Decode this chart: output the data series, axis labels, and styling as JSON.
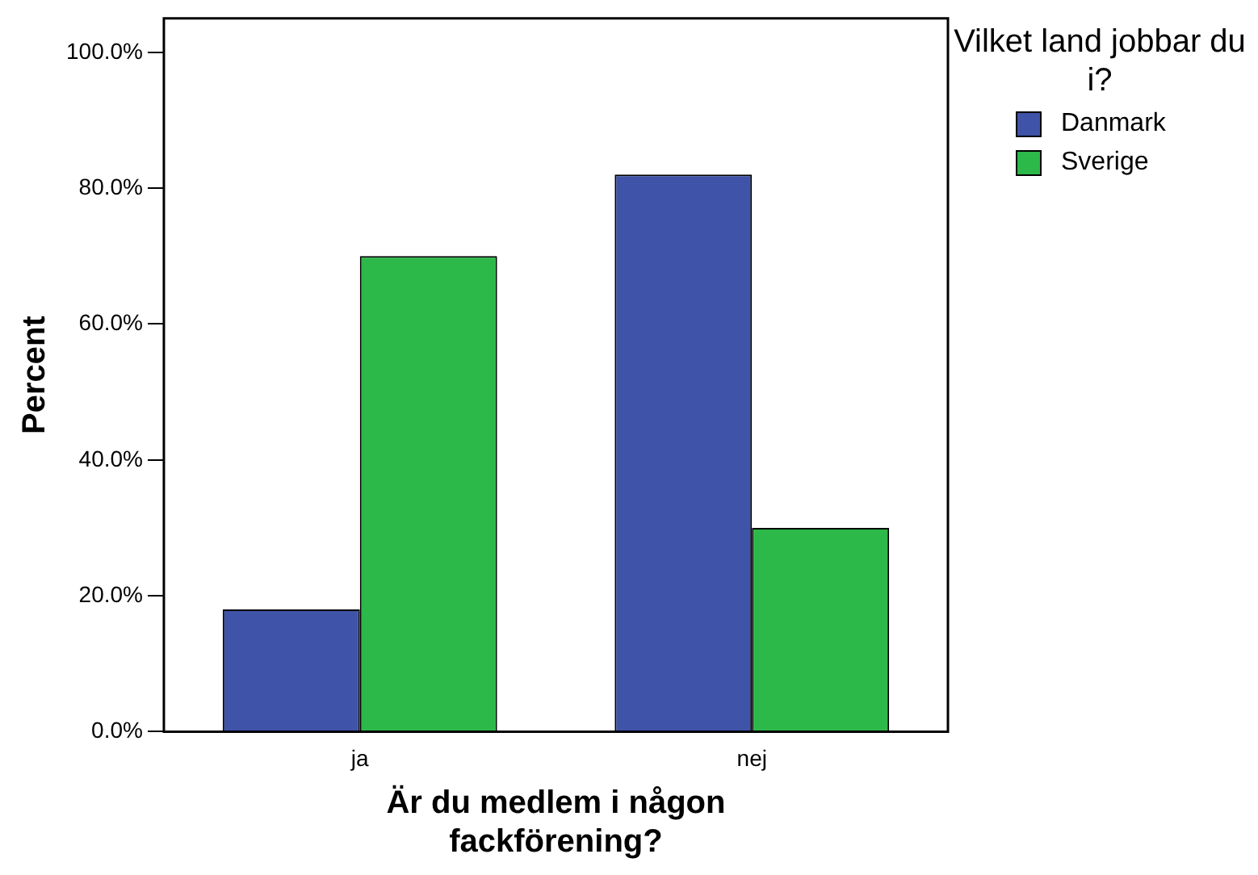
{
  "chart_data": {
    "type": "bar",
    "xlabel": "Är du medlem i någon fackförening?",
    "ylabel": "Percent",
    "legend_title": "Vilket land jobbar du i?",
    "categories": [
      "ja",
      "nej"
    ],
    "series": [
      {
        "name": "Danmark",
        "color": "#3f54a8",
        "values": [
          18,
          82
        ]
      },
      {
        "name": "Sverige",
        "color": "#2db84a",
        "values": [
          70,
          30
        ]
      }
    ],
    "ylim": [
      0,
      105
    ],
    "yticks": [
      {
        "value": 0,
        "label": "0.0%"
      },
      {
        "value": 20,
        "label": "20.0%"
      },
      {
        "value": 40,
        "label": "40.0%"
      },
      {
        "value": 60,
        "label": "60.0%"
      },
      {
        "value": 80,
        "label": "80.0%"
      },
      {
        "value": 100,
        "label": "100.0%"
      }
    ],
    "grid": false,
    "legend": "top right"
  }
}
